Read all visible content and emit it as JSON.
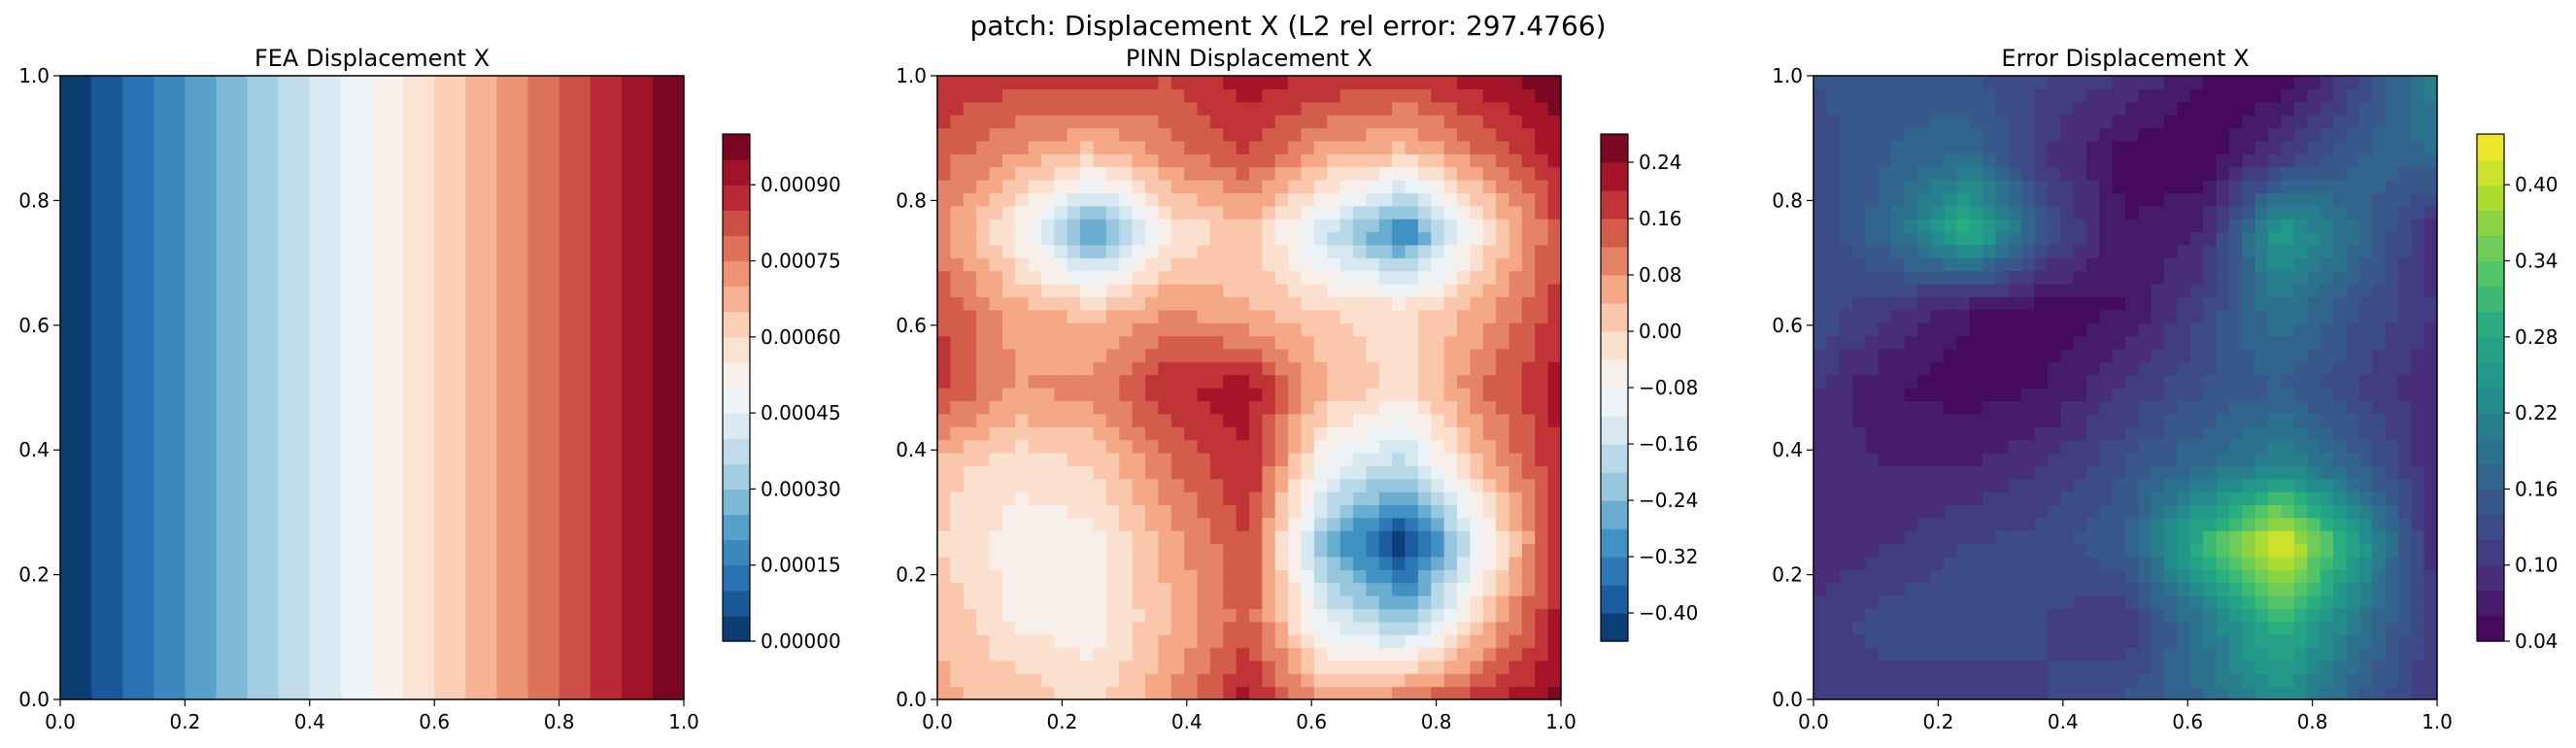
{
  "suptitle": "patch: Displacement X (L2 rel error: 297.4766)",
  "chart_data": [
    {
      "type": "heatmap",
      "title": "FEA Displacement X",
      "colormap": "RdBu_r",
      "xlim": [
        0,
        1
      ],
      "ylim": [
        0,
        1
      ],
      "x_ticks": [
        "0.0",
        "0.2",
        "0.4",
        "0.6",
        "0.8",
        "1.0"
      ],
      "y_ticks": [
        "0.0",
        "0.2",
        "0.4",
        "0.6",
        "0.8",
        "1.0"
      ],
      "grid_x": [
        0,
        0.05,
        0.1,
        0.15,
        0.2,
        0.25,
        0.3,
        0.35,
        0.4,
        0.45,
        0.5,
        0.55,
        0.6,
        0.65,
        0.7,
        0.75,
        0.8,
        0.85,
        0.9,
        0.95,
        1.0
      ],
      "values": [
        0.0,
        5e-05,
        0.0001,
        0.00015,
        0.0002,
        0.00025,
        0.0003,
        0.00035,
        0.0004,
        0.00045,
        0.0005,
        0.00055,
        0.0006,
        0.00065,
        0.0007,
        0.00075,
        0.0008,
        0.00085,
        0.0009,
        0.00095,
        0.001
      ],
      "colorbar": {
        "range": [
          0.0,
          0.001
        ],
        "ticks": [
          0.0,
          0.00015,
          0.0003,
          0.00045,
          0.0006,
          0.00075,
          0.0009
        ],
        "tick_labels": [
          "0.00000",
          "0.00015",
          "0.00030",
          "0.00045",
          "0.00060",
          "0.00075",
          "0.00090"
        ],
        "levels": 20
      }
    },
    {
      "type": "heatmap",
      "title": "PINN Displacement X",
      "colormap": "RdBu_r",
      "xlim": [
        0,
        1
      ],
      "ylim": [
        0,
        1
      ],
      "x_ticks": [
        "0.0",
        "0.2",
        "0.4",
        "0.6",
        "0.8",
        "1.0"
      ],
      "y_ticks": [
        "0.0",
        "0.2",
        "0.4",
        "0.6",
        "0.8",
        "1.0"
      ],
      "grid_x": [
        0,
        0.125,
        0.25,
        0.375,
        0.5,
        0.625,
        0.75,
        0.875,
        1.0
      ],
      "grid_y": [
        0,
        0.125,
        0.25,
        0.375,
        0.5,
        0.625,
        0.75,
        0.875,
        1.0
      ],
      "values": [
        [
          0.05,
          0.03,
          -0.02,
          0.08,
          0.22,
          0.05,
          0.12,
          0.18,
          0.25
        ],
        [
          0.04,
          -0.05,
          -0.06,
          0.04,
          0.14,
          -0.12,
          -0.22,
          0.02,
          0.22
        ],
        [
          0.0,
          -0.06,
          -0.06,
          0.06,
          0.16,
          -0.25,
          -0.44,
          -0.1,
          0.2
        ],
        [
          0.02,
          -0.03,
          0.0,
          0.12,
          0.2,
          -0.1,
          -0.18,
          0.04,
          0.2
        ],
        [
          0.18,
          0.08,
          0.1,
          0.2,
          0.22,
          0.04,
          -0.02,
          0.12,
          0.22
        ],
        [
          0.16,
          0.06,
          0.02,
          0.08,
          0.04,
          0.0,
          -0.02,
          0.06,
          0.18
        ],
        [
          0.1,
          -0.06,
          -0.3,
          -0.04,
          0.02,
          -0.16,
          -0.34,
          -0.04,
          0.16
        ],
        [
          0.14,
          0.08,
          0.02,
          0.1,
          0.16,
          0.06,
          0.02,
          0.12,
          0.22
        ],
        [
          0.2,
          0.18,
          0.2,
          0.16,
          0.22,
          0.2,
          0.18,
          0.22,
          0.28
        ]
      ],
      "colorbar": {
        "range": [
          -0.44,
          0.28
        ],
        "ticks": [
          -0.4,
          -0.32,
          -0.24,
          -0.16,
          -0.08,
          0.0,
          0.08,
          0.16,
          0.24
        ],
        "tick_labels": [
          "−0.40",
          "−0.32",
          "−0.24",
          "−0.16",
          "−0.08",
          "0.00",
          "0.08",
          "0.16",
          "0.24"
        ],
        "levels": 18
      }
    },
    {
      "type": "heatmap",
      "title": "Error Displacement X",
      "colormap": "viridis",
      "xlim": [
        0,
        1
      ],
      "ylim": [
        0,
        1
      ],
      "x_ticks": [
        "0.0",
        "0.2",
        "0.4",
        "0.6",
        "0.8",
        "1.0"
      ],
      "y_ticks": [
        "0.0",
        "0.2",
        "0.4",
        "0.6",
        "0.8",
        "1.0"
      ],
      "grid_x": [
        0,
        0.125,
        0.25,
        0.375,
        0.5,
        0.625,
        0.75,
        0.875,
        1.0
      ],
      "grid_y": [
        0,
        0.125,
        0.25,
        0.375,
        0.5,
        0.625,
        0.75,
        0.875,
        1.0
      ],
      "values": [
        [
          0.12,
          0.11,
          0.1,
          0.12,
          0.14,
          0.18,
          0.24,
          0.16,
          0.1
        ],
        [
          0.11,
          0.13,
          0.14,
          0.12,
          0.1,
          0.2,
          0.3,
          0.2,
          0.1
        ],
        [
          0.08,
          0.1,
          0.12,
          0.13,
          0.16,
          0.3,
          0.44,
          0.26,
          0.08
        ],
        [
          0.09,
          0.08,
          0.08,
          0.1,
          0.14,
          0.18,
          0.22,
          0.16,
          0.08
        ],
        [
          0.1,
          0.06,
          0.05,
          0.06,
          0.1,
          0.14,
          0.16,
          0.12,
          0.08
        ],
        [
          0.14,
          0.1,
          0.06,
          0.05,
          0.06,
          0.12,
          0.2,
          0.14,
          0.1
        ],
        [
          0.12,
          0.18,
          0.3,
          0.14,
          0.06,
          0.08,
          0.26,
          0.18,
          0.08
        ],
        [
          0.13,
          0.16,
          0.18,
          0.1,
          0.05,
          0.04,
          0.1,
          0.16,
          0.18
        ],
        [
          0.14,
          0.15,
          0.14,
          0.12,
          0.1,
          0.06,
          0.04,
          0.12,
          0.22
        ]
      ],
      "colorbar": {
        "range": [
          0.04,
          0.44
        ],
        "ticks": [
          0.04,
          0.1,
          0.16,
          0.22,
          0.28,
          0.34,
          0.4
        ],
        "tick_labels": [
          "0.04",
          "0.10",
          "0.16",
          "0.22",
          "0.28",
          "0.34",
          "0.40"
        ],
        "levels": 20
      }
    }
  ]
}
